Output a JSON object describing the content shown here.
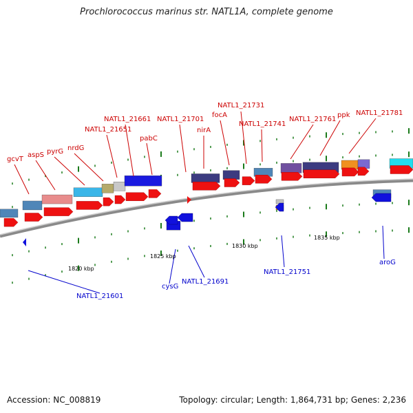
{
  "title": "Prochlorococcus marinus str. NATL1A, complete genome",
  "accession_label": "Accession: NC_008819",
  "summary_label": "Topology: circular; Length: 1,864,731 bp; Genes: 2,236",
  "colors": {
    "backbone": "#8a8a8a",
    "forward_cds": "#ee1111",
    "reverse_cds": "#1111dd",
    "forward_label": "#cc0000",
    "reverse_label": "#0000cc",
    "tick": "#1a7a1a"
  },
  "scale": [
    {
      "label": "1820 kbp"
    },
    {
      "label": "1825 kbp"
    },
    {
      "label": "1830 kbp"
    },
    {
      "label": "1835 kbp"
    }
  ],
  "forward_labels": [
    {
      "text": "gcvT"
    },
    {
      "text": "aspS"
    },
    {
      "text": "pyrG"
    },
    {
      "text": "nrdG"
    },
    {
      "text": "NATL1_21651"
    },
    {
      "text": "NATL1_21661"
    },
    {
      "text": "pabC"
    },
    {
      "text": "NATL1_21701"
    },
    {
      "text": "nirA"
    },
    {
      "text": "focA"
    },
    {
      "text": "NATL1_21731"
    },
    {
      "text": "NATL1_21741"
    },
    {
      "text": "NATL1_21761"
    },
    {
      "text": "ppk"
    },
    {
      "text": "NATL1_21781"
    }
  ],
  "reverse_labels": [
    {
      "text": "NATL1_21601"
    },
    {
      "text": "cysG"
    },
    {
      "text": "NATL1_21691"
    },
    {
      "text": "NATL1_21751"
    },
    {
      "text": "aroG"
    }
  ]
}
